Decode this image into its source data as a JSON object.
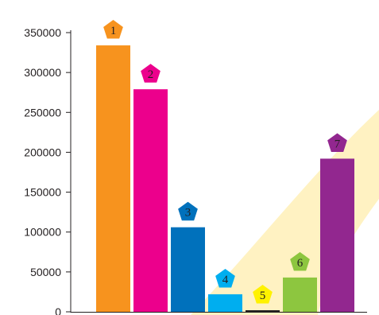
{
  "chart_data": {
    "type": "bar",
    "categories": [
      "1",
      "2",
      "3",
      "4",
      "5",
      "6",
      "7"
    ],
    "values": [
      334000,
      279000,
      106000,
      22000,
      2000,
      43000,
      192000
    ],
    "series_colors": [
      "#f7931e",
      "#ec008c",
      "#0071bc",
      "#00aeef",
      "#231f20",
      "#8dc63f",
      "#92278f"
    ],
    "badge_colors": [
      "#f7931e",
      "#ec008c",
      "#0071bc",
      "#00aeef",
      "#fff200",
      "#8dc63f",
      "#92278f"
    ],
    "ylim": [
      0,
      350000
    ],
    "yticks": [
      0,
      50000,
      100000,
      150000,
      200000,
      250000,
      300000,
      350000
    ],
    "ytick_labels": [
      "0",
      "50000",
      "100000",
      "150000",
      "200000",
      "250000",
      "300000",
      "350000"
    ],
    "title": "",
    "xlabel": "",
    "ylabel": "",
    "grid": false,
    "background_accent": "#fff2c2"
  }
}
